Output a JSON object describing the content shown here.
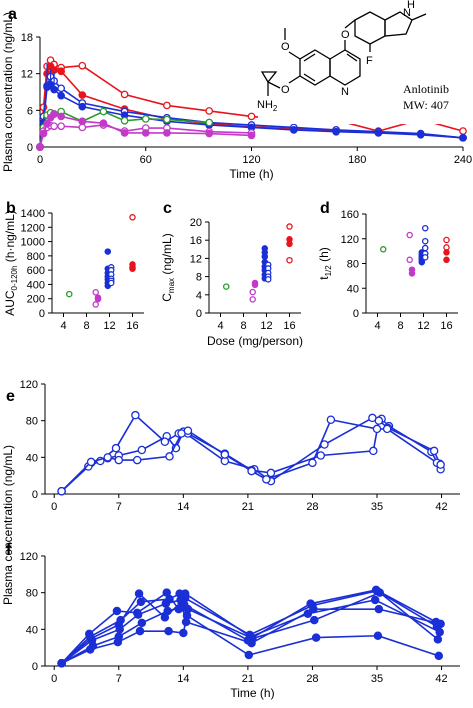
{
  "colors": {
    "red": "#e8141c",
    "blue": "#1a2fd6",
    "green": "#2a9a2a",
    "magenta": "#c23ac8"
  },
  "panel_letters": {
    "a": "a",
    "b": "b",
    "c": "c",
    "d": "d",
    "e": "e",
    "f": "f"
  },
  "molecule": {
    "name": "Anlotinib",
    "mw": "MW: 407",
    "atom_O1": "O",
    "atom_O2": "O",
    "atom_O3": "O",
    "atom_N_ring": "N",
    "atom_NH": "H",
    "atom_NH_N": "N",
    "atom_F": "F",
    "atom_NH2": "NH",
    "atom_NH2_sub": "2"
  },
  "chart_data": [
    {
      "id": "a",
      "type": "line",
      "ylabel": "Plasma concentration (ng/mL)",
      "xlabel": "Time (h)",
      "xlim": [
        0,
        240
      ],
      "ylim": [
        0,
        18
      ],
      "xticks": [
        "0",
        "60",
        "120",
        "180",
        "240"
      ],
      "yticks": [
        "0",
        "6",
        "12",
        "18"
      ],
      "series": [
        {
          "color": "red",
          "fill": false,
          "x": [
            0,
            2,
            4,
            6,
            8,
            12,
            24,
            48,
            72,
            96,
            120,
            144,
            168,
            192,
            216,
            240
          ],
          "y": [
            0,
            6.5,
            13.2,
            14.2,
            13.5,
            13,
            13.3,
            8.6,
            6.8,
            5.9,
            5,
            4.4,
            4.4,
            2.6,
            4.5,
            2.6
          ]
        },
        {
          "color": "red",
          "fill": true,
          "x": [
            0,
            2,
            4,
            6,
            8,
            12,
            24,
            48,
            72,
            96,
            120,
            144,
            168,
            192,
            216,
            240
          ],
          "y": [
            0,
            5,
            12,
            13.2,
            12.6,
            12.4,
            8.5,
            6.2,
            4.6,
            3.8,
            3.3,
            3,
            2.7,
            2.4,
            2.1,
            1.5
          ]
        },
        {
          "color": "blue",
          "fill": false,
          "x": [
            0,
            2,
            4,
            6,
            8,
            12,
            24,
            48,
            72,
            96,
            120,
            144,
            168,
            192,
            216,
            240
          ],
          "y": [
            0,
            5,
            10,
            11.5,
            10.8,
            9.6,
            7.2,
            5.8,
            4.8,
            4,
            3.6,
            3.2,
            2.8,
            2.5,
            2.2,
            1.5
          ]
        },
        {
          "color": "blue",
          "fill": true,
          "x": [
            0,
            2,
            4,
            6,
            8,
            12,
            24,
            48,
            72,
            96,
            120,
            144,
            168,
            192,
            216,
            240
          ],
          "y": [
            0,
            4,
            9.8,
            10.2,
            9.4,
            8.4,
            6.6,
            5.2,
            4.2,
            3.6,
            3.2,
            2.8,
            2.5,
            2.3,
            2,
            1.5
          ]
        },
        {
          "color": "green",
          "fill": false,
          "x": [
            0,
            2,
            4,
            6,
            8,
            12,
            24,
            36,
            48,
            60,
            72,
            96
          ],
          "y": [
            0,
            3.2,
            5.2,
            5.6,
            5.4,
            5.8,
            4.2,
            5.8,
            4.3,
            4.6,
            4.5,
            4
          ]
        },
        {
          "color": "magenta",
          "fill": false,
          "x": [
            0,
            2,
            4,
            6,
            8,
            12,
            24,
            36,
            48,
            60,
            72,
            96,
            120
          ],
          "y": [
            0,
            2.6,
            3.2,
            3.5,
            3.4,
            3.4,
            3.2,
            3.6,
            2.6,
            3.1,
            3.1,
            2.5,
            2.3
          ]
        },
        {
          "color": "magenta",
          "fill": true,
          "x": [
            0,
            2,
            4,
            6,
            8,
            12,
            24,
            36,
            48,
            60,
            72,
            96,
            120
          ],
          "y": [
            0,
            2.2,
            3.8,
            4.8,
            5.4,
            5,
            4.2,
            3.9,
            2.3,
            2.3,
            2.3,
            2.2,
            1.9
          ]
        }
      ]
    },
    {
      "id": "b",
      "type": "scatter",
      "ylabel": "AUC",
      "ylabel_sub": "0-120h",
      "ylabel_suffix": " (h·ng/mL)",
      "xlim": [
        2,
        18
      ],
      "ylim": [
        0,
        1400
      ],
      "xticks": [
        "4",
        "8",
        "12",
        "16"
      ],
      "yticks": [
        "0",
        "200",
        "400",
        "600",
        "800",
        "1000",
        "1200",
        "1400"
      ],
      "points": [
        {
          "x": 5,
          "y": 265,
          "color": "green",
          "fill": false
        },
        {
          "x": 9.6,
          "y": 290,
          "color": "magenta",
          "fill": false
        },
        {
          "x": 9.6,
          "y": 120,
          "color": "magenta",
          "fill": false
        },
        {
          "x": 10,
          "y": 195,
          "color": "magenta",
          "fill": true
        },
        {
          "x": 10,
          "y": 215,
          "color": "magenta",
          "fill": true
        },
        {
          "x": 11.7,
          "y": 860,
          "color": "blue",
          "fill": true
        },
        {
          "x": 11.7,
          "y": 620,
          "color": "blue",
          "fill": true
        },
        {
          "x": 11.7,
          "y": 560,
          "color": "blue",
          "fill": true
        },
        {
          "x": 11.7,
          "y": 510,
          "color": "blue",
          "fill": true
        },
        {
          "x": 11.7,
          "y": 470,
          "color": "blue",
          "fill": true
        },
        {
          "x": 11.7,
          "y": 420,
          "color": "blue",
          "fill": true
        },
        {
          "x": 11.7,
          "y": 380,
          "color": "blue",
          "fill": true
        },
        {
          "x": 12.3,
          "y": 640,
          "color": "blue",
          "fill": false
        },
        {
          "x": 12.3,
          "y": 600,
          "color": "blue",
          "fill": false
        },
        {
          "x": 12.3,
          "y": 540,
          "color": "blue",
          "fill": false
        },
        {
          "x": 12.3,
          "y": 480,
          "color": "blue",
          "fill": false
        },
        {
          "x": 12.3,
          "y": 450,
          "color": "blue",
          "fill": false
        },
        {
          "x": 12.3,
          "y": 420,
          "color": "blue",
          "fill": false
        },
        {
          "x": 16,
          "y": 1340,
          "color": "red",
          "fill": false
        },
        {
          "x": 16,
          "y": 640,
          "color": "red",
          "fill": false
        },
        {
          "x": 16,
          "y": 680,
          "color": "red",
          "fill": true
        },
        {
          "x": 16,
          "y": 620,
          "color": "red",
          "fill": true
        }
      ]
    },
    {
      "id": "c",
      "type": "scatter",
      "ylabel": "C",
      "ylabel_sub": "max",
      "ylabel_suffix": " (ng/mL)",
      "xlabel": "Dose (mg/person)",
      "xlim": [
        2,
        18
      ],
      "ylim": [
        0,
        20
      ],
      "xticks": [
        "4",
        "8",
        "12",
        "16"
      ],
      "yticks": [
        "0",
        "4",
        "8",
        "12",
        "16",
        "20"
      ],
      "points": [
        {
          "x": 5,
          "y": 5.8,
          "color": "green",
          "fill": false
        },
        {
          "x": 9.6,
          "y": 4.6,
          "color": "magenta",
          "fill": false
        },
        {
          "x": 9.6,
          "y": 3,
          "color": "magenta",
          "fill": false
        },
        {
          "x": 10,
          "y": 6.2,
          "color": "magenta",
          "fill": true
        },
        {
          "x": 10,
          "y": 6.6,
          "color": "magenta",
          "fill": true
        },
        {
          "x": 11.7,
          "y": 14.2,
          "color": "blue",
          "fill": true
        },
        {
          "x": 11.7,
          "y": 13.3,
          "color": "blue",
          "fill": true
        },
        {
          "x": 11.7,
          "y": 12.4,
          "color": "blue",
          "fill": true
        },
        {
          "x": 11.7,
          "y": 11.2,
          "color": "blue",
          "fill": true
        },
        {
          "x": 11.7,
          "y": 10.2,
          "color": "blue",
          "fill": true
        },
        {
          "x": 11.7,
          "y": 9.4,
          "color": "blue",
          "fill": true
        },
        {
          "x": 11.7,
          "y": 8.4,
          "color": "blue",
          "fill": true
        },
        {
          "x": 11.7,
          "y": 7.6,
          "color": "blue",
          "fill": true
        },
        {
          "x": 12.3,
          "y": 10.6,
          "color": "blue",
          "fill": false
        },
        {
          "x": 12.3,
          "y": 9.8,
          "color": "blue",
          "fill": false
        },
        {
          "x": 12.3,
          "y": 8.8,
          "color": "blue",
          "fill": false
        },
        {
          "x": 12.3,
          "y": 8,
          "color": "blue",
          "fill": false
        },
        {
          "x": 12.3,
          "y": 7.4,
          "color": "blue",
          "fill": false
        },
        {
          "x": 16,
          "y": 19,
          "color": "red",
          "fill": false
        },
        {
          "x": 16,
          "y": 11.6,
          "color": "red",
          "fill": false
        },
        {
          "x": 16,
          "y": 16.2,
          "color": "red",
          "fill": true
        },
        {
          "x": 16,
          "y": 15.2,
          "color": "red",
          "fill": true
        }
      ]
    },
    {
      "id": "d",
      "type": "scatter",
      "ylabel": "t",
      "ylabel_sub": "1/2",
      "ylabel_suffix": " (h)",
      "xlim": [
        2,
        18
      ],
      "ylim": [
        0,
        160
      ],
      "xticks": [
        "4",
        "8",
        "12",
        "16"
      ],
      "yticks": [
        "0",
        "40",
        "80",
        "120",
        "160"
      ],
      "points": [
        {
          "x": 5,
          "y": 103,
          "color": "green",
          "fill": false
        },
        {
          "x": 9.6,
          "y": 126,
          "color": "magenta",
          "fill": false
        },
        {
          "x": 9.6,
          "y": 86,
          "color": "magenta",
          "fill": false
        },
        {
          "x": 10,
          "y": 70,
          "color": "magenta",
          "fill": true
        },
        {
          "x": 10,
          "y": 64,
          "color": "magenta",
          "fill": true
        },
        {
          "x": 11.7,
          "y": 98,
          "color": "blue",
          "fill": true
        },
        {
          "x": 11.7,
          "y": 94,
          "color": "blue",
          "fill": true
        },
        {
          "x": 11.7,
          "y": 91,
          "color": "blue",
          "fill": true
        },
        {
          "x": 11.7,
          "y": 88,
          "color": "blue",
          "fill": true
        },
        {
          "x": 11.7,
          "y": 85,
          "color": "blue",
          "fill": true
        },
        {
          "x": 11.7,
          "y": 82,
          "color": "blue",
          "fill": true
        },
        {
          "x": 12.3,
          "y": 137,
          "color": "blue",
          "fill": false
        },
        {
          "x": 12.3,
          "y": 116,
          "color": "blue",
          "fill": false
        },
        {
          "x": 12.3,
          "y": 105,
          "color": "blue",
          "fill": false
        },
        {
          "x": 12.3,
          "y": 96,
          "color": "blue",
          "fill": false
        },
        {
          "x": 12.3,
          "y": 90,
          "color": "blue",
          "fill": false
        },
        {
          "x": 16,
          "y": 118,
          "color": "red",
          "fill": false
        },
        {
          "x": 16,
          "y": 106,
          "color": "red",
          "fill": false
        },
        {
          "x": 16,
          "y": 98,
          "color": "red",
          "fill": true
        },
        {
          "x": 16,
          "y": 86,
          "color": "red",
          "fill": true
        }
      ]
    },
    {
      "id": "e",
      "type": "line",
      "ylabel_shared": "Plasma concentration (ng/mL)",
      "xlim": [
        -1,
        44
      ],
      "ylim": [
        0,
        120
      ],
      "xticks": [
        "0",
        "7",
        "14",
        "21",
        "28",
        "35",
        "42"
      ],
      "yticks": [
        "0",
        "40",
        "80",
        "120"
      ],
      "series": [
        {
          "color": "blue",
          "fill": false,
          "x": [
            0.8,
            4,
            5.8,
            7,
            9.5,
            12.2,
            13.2,
            14,
            18.5,
            21.7,
            23.5,
            29.3,
            34.5,
            35.5,
            36.3,
            40.9,
            41.9
          ],
          "y": [
            3,
            34,
            39,
            42,
            48,
            63,
            50,
            68,
            36,
            27,
            14,
            54,
            83,
            82,
            74,
            46,
            27
          ]
        },
        {
          "color": "blue",
          "fill": false,
          "x": [
            0.8,
            3.7,
            5,
            6.7,
            8.8,
            12,
            13.5,
            14.5,
            18.5,
            21.4,
            23.5,
            28.9,
            34.6,
            35.2,
            36.2,
            41.2,
            41.8
          ],
          "y": [
            3,
            30,
            36,
            50,
            86,
            57,
            66,
            66,
            44,
            26,
            23,
            42,
            47,
            80,
            72,
            47,
            33
          ]
        },
        {
          "color": "blue",
          "fill": false,
          "x": [
            0.8,
            4,
            5.8,
            7,
            9,
            12.5,
            13.8,
            14.5,
            18.5,
            21.4,
            23,
            28,
            30,
            35,
            36.1,
            41.5,
            41.9
          ],
          "y": [
            3,
            35,
            40,
            37,
            37,
            41,
            66,
            69,
            43,
            25,
            16,
            34,
            81,
            71,
            71,
            34,
            32
          ]
        }
      ]
    },
    {
      "id": "f",
      "type": "line",
      "ylabel": "Plasma concentration (ng/mL)",
      "xlabel": "Time (h)",
      "xlim": [
        -1,
        44
      ],
      "ylim": [
        0,
        120
      ],
      "xticks": [
        "0",
        "7",
        "14",
        "21",
        "28",
        "35",
        "42"
      ],
      "yticks": [
        "0",
        "40",
        "80",
        "120"
      ],
      "series": [
        {
          "color": "blue",
          "fill": true,
          "x": [
            0.8,
            3.8,
            6.8,
            9,
            12.2,
            13.5,
            14.2,
            21.2,
            28,
            35,
            41.5
          ],
          "y": [
            3,
            35,
            60,
            58,
            80,
            62,
            74,
            34,
            66,
            82,
            43
          ]
        },
        {
          "color": "blue",
          "fill": true,
          "x": [
            0.8,
            4,
            7,
            9.2,
            12,
            13.8,
            14.2,
            21.3,
            27.5,
            34.8,
            41.8
          ],
          "y": [
            3,
            30,
            45,
            79,
            53,
            70,
            79,
            32,
            57,
            72,
            37
          ]
        },
        {
          "color": "blue",
          "fill": true,
          "x": [
            0.8,
            4.2,
            7,
            9.5,
            12.3,
            13.8,
            14.5,
            21.5,
            28.2,
            35.3,
            41.6
          ],
          "y": [
            3,
            22,
            32,
            47,
            60,
            64,
            62,
            30,
            50,
            80,
            29
          ]
        },
        {
          "color": "blue",
          "fill": true,
          "x": [
            0.8,
            3.9,
            6.9,
            9.3,
            12.4,
            14,
            14.4,
            21.1,
            28.4,
            35.1,
            41.7
          ],
          "y": [
            3,
            18,
            26,
            38,
            38,
            36,
            55,
            12,
            31,
            33,
            11
          ]
        },
        {
          "color": "blue",
          "fill": true,
          "x": [
            0.8,
            4.1,
            7.1,
            9.1,
            12.1,
            13.7,
            14.3,
            21.4,
            28.1,
            35.2,
            41.9
          ],
          "y": [
            3,
            28,
            40,
            56,
            68,
            72,
            48,
            25,
            62,
            62,
            46
          ]
        },
        {
          "color": "blue",
          "fill": true,
          "x": [
            0.8,
            3.9,
            7.2,
            9.4,
            12.5,
            13.6,
            14.1,
            21,
            27.8,
            34.9,
            41.4
          ],
          "y": [
            3,
            32,
            50,
            70,
            73,
            79,
            67,
            28,
            68,
            83,
            48
          ]
        }
      ]
    }
  ]
}
